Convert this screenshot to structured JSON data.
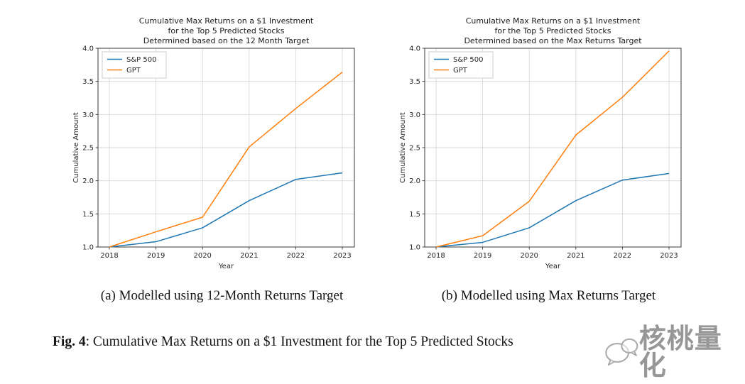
{
  "page": {
    "subcaptions": {
      "a": "(a) Modelled using 12-Month Returns Target",
      "b": "(b) Modelled using Max Returns Target"
    },
    "figure_caption": {
      "label": "Fig. 4",
      "text": ": Cumulative Max Returns on a $1 Investment for the Top 5 Predicted Stocks"
    },
    "watermark": {
      "icon": "wechat-chat-bubbles-icon",
      "text": "核桃量化",
      "color": "#808080"
    }
  },
  "chart_data": [
    {
      "type": "line",
      "title_lines": [
        "Cumulative Max Returns on a $1 Investment",
        "for the Top 5 Predicted Stocks",
        "Determined based on the 12 Month Target"
      ],
      "xlabel": "Year",
      "ylabel": "Cumulative Amount",
      "x": [
        2018,
        2019,
        2020,
        2021,
        2022,
        2023
      ],
      "ylim": [
        1.0,
        4.0
      ],
      "yticks": [
        1.0,
        1.5,
        2.0,
        2.5,
        3.0,
        3.5,
        4.0
      ],
      "grid": true,
      "legend_position": "upper-left",
      "series": [
        {
          "name": "S&P 500",
          "color": "#1f77b4",
          "values": [
            1.0,
            1.08,
            1.29,
            1.7,
            2.02,
            2.12
          ]
        },
        {
          "name": "GPT",
          "color": "#ff7f0e",
          "values": [
            1.0,
            1.23,
            1.45,
            2.51,
            3.09,
            3.64
          ]
        }
      ]
    },
    {
      "type": "line",
      "title_lines": [
        "Cumulative Max Returns on a $1 Investment",
        "for the Top 5 Predicted Stocks",
        "Determined based on the Max Returns Target"
      ],
      "xlabel": "Year",
      "ylabel": "Cumulative Amount",
      "x": [
        2018,
        2019,
        2020,
        2021,
        2022,
        2023
      ],
      "ylim": [
        1.0,
        4.0
      ],
      "yticks": [
        1.0,
        1.5,
        2.0,
        2.5,
        3.0,
        3.5,
        4.0
      ],
      "grid": true,
      "legend_position": "upper-left",
      "series": [
        {
          "name": "S&P 500",
          "color": "#1f77b4",
          "values": [
            1.0,
            1.07,
            1.29,
            1.7,
            2.01,
            2.11
          ]
        },
        {
          "name": "GPT",
          "color": "#ff7f0e",
          "values": [
            1.0,
            1.17,
            1.69,
            2.69,
            3.26,
            3.96
          ]
        }
      ]
    }
  ],
  "style": {
    "grid_color": "#d9d9d9",
    "spine_color": "#3a3a3a",
    "text_color": "#262626"
  }
}
